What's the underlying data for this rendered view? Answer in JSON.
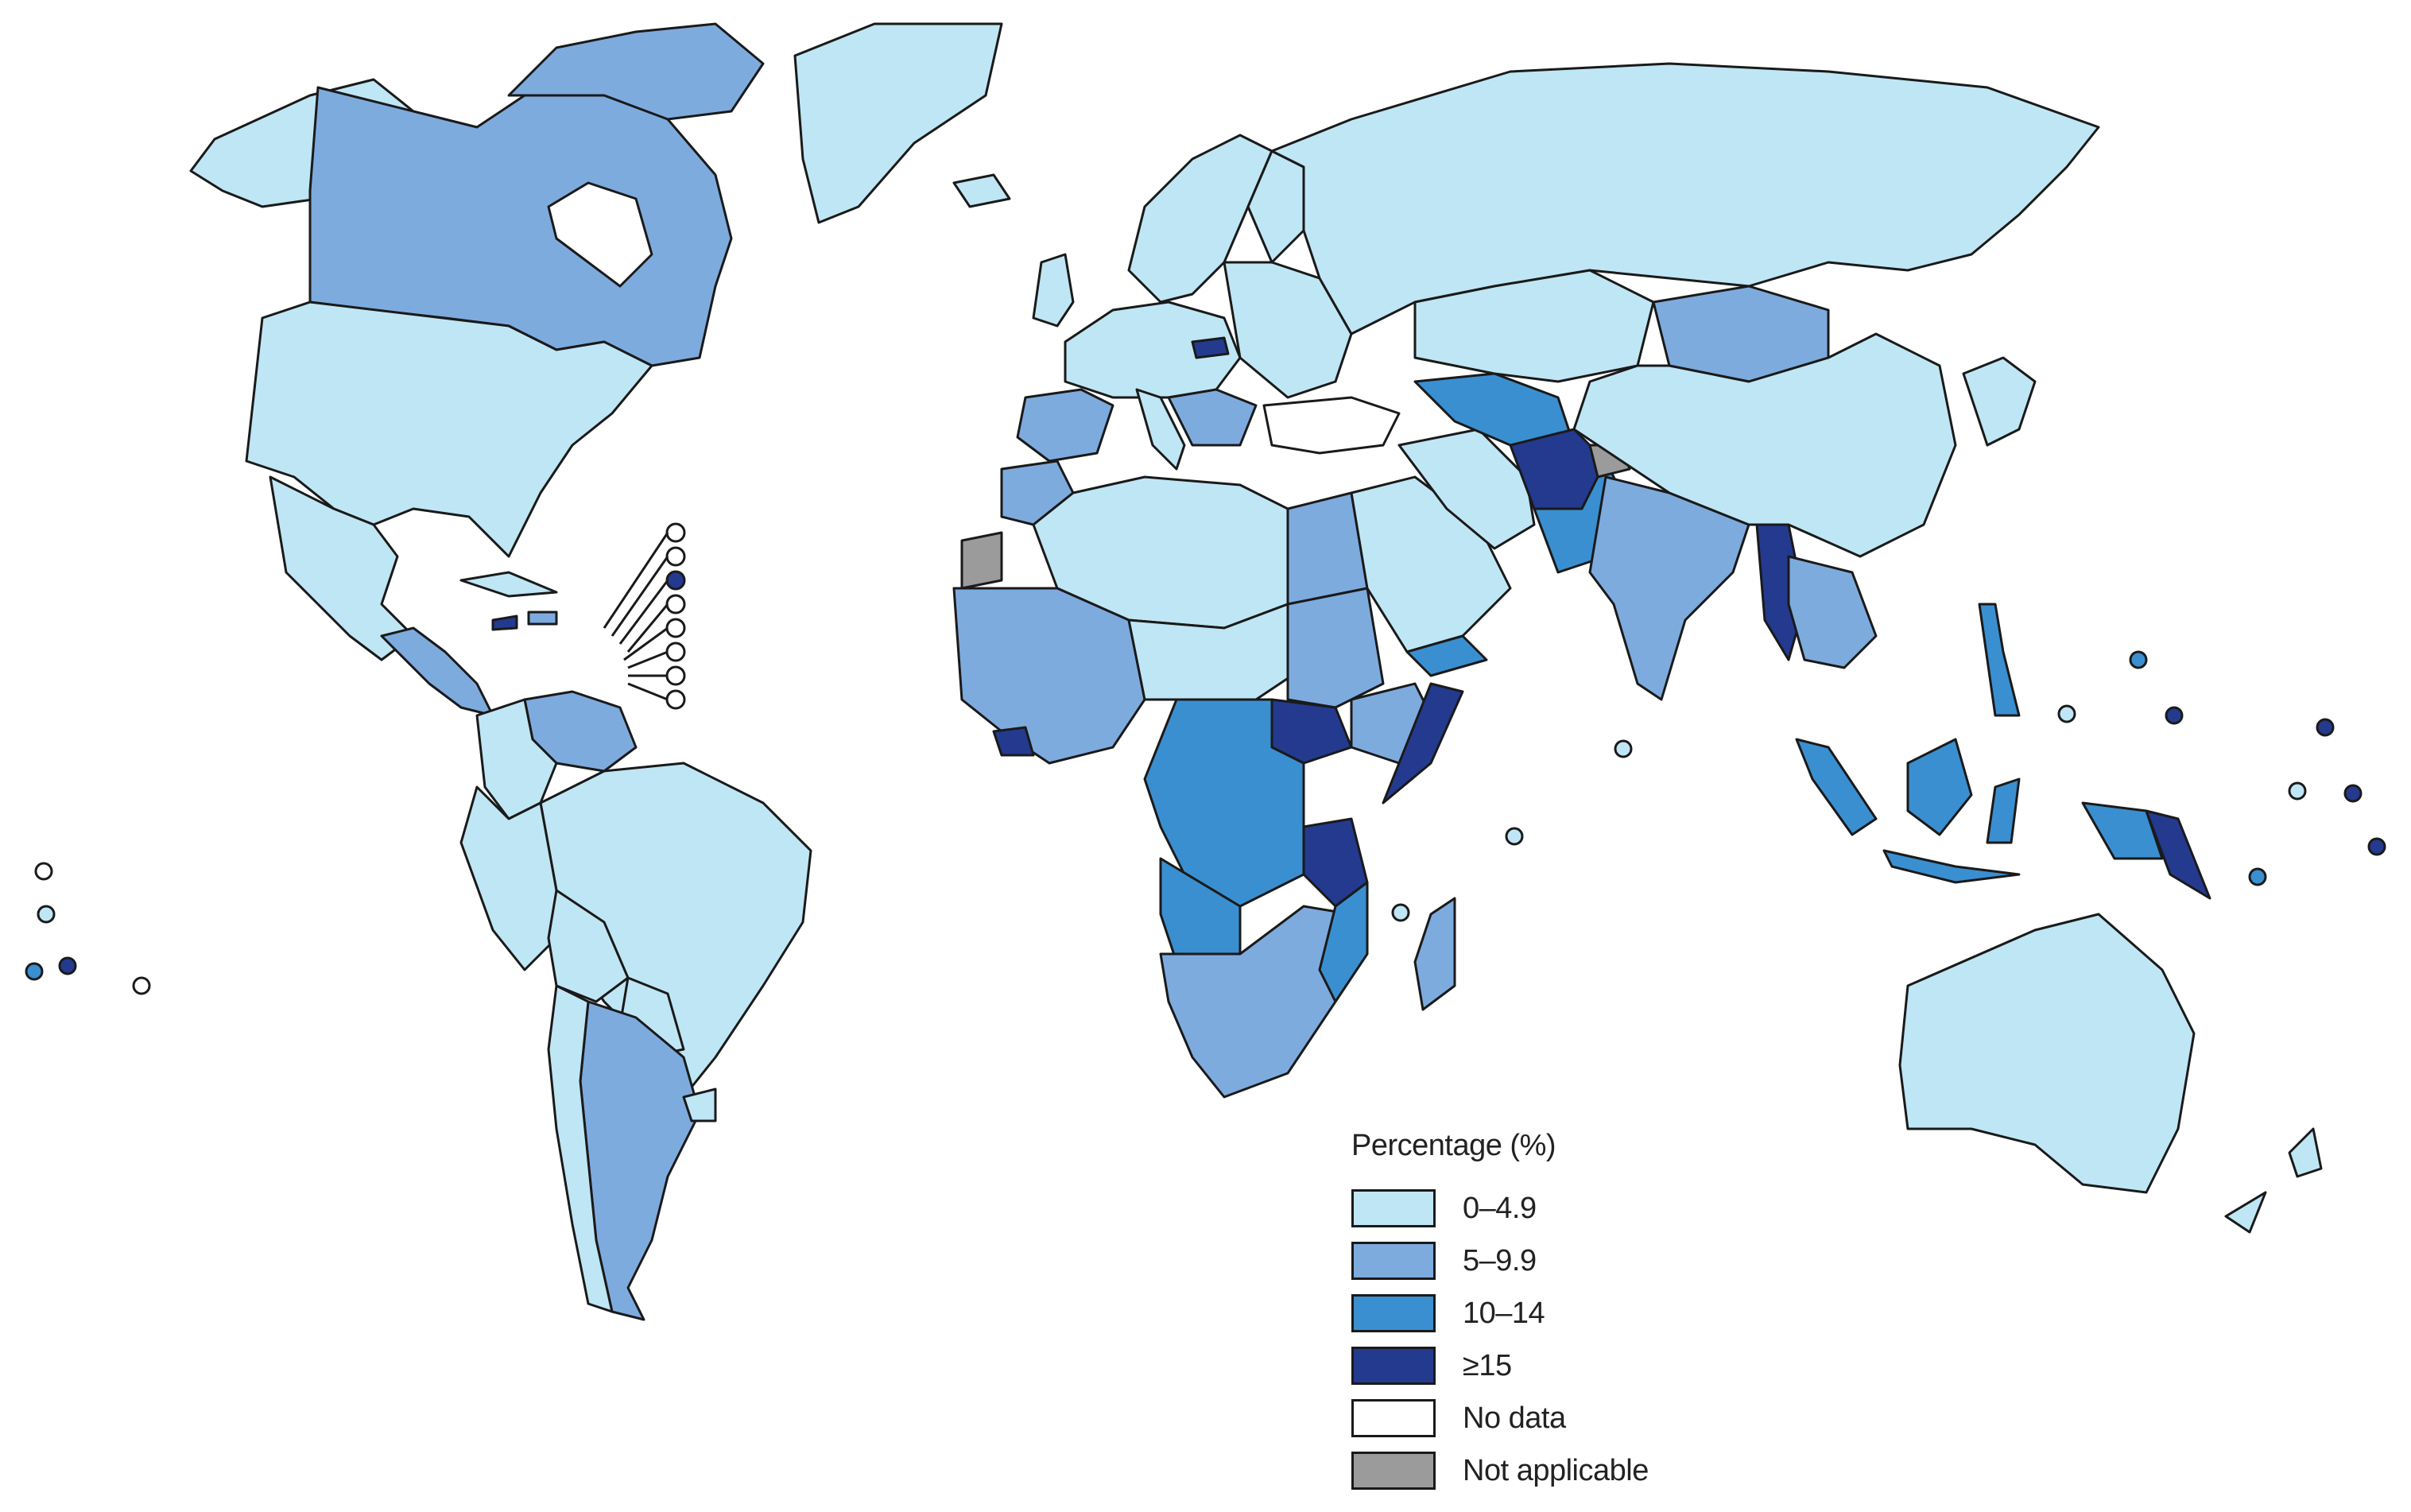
{
  "legend": {
    "title": "Percentage (%)",
    "items": [
      {
        "label": "0–4.9",
        "color": "#bfe6f4"
      },
      {
        "label": "5–9.9",
        "color": "#7eabde"
      },
      {
        "label": "10–14",
        "color": "#3a8fd0"
      },
      {
        "label": "≥15",
        "color": "#233a8f"
      },
      {
        "label": "No data",
        "color": "#ffffff"
      },
      {
        "label": "Not applicable",
        "color": "#9b9b9b"
      }
    ]
  }
}
